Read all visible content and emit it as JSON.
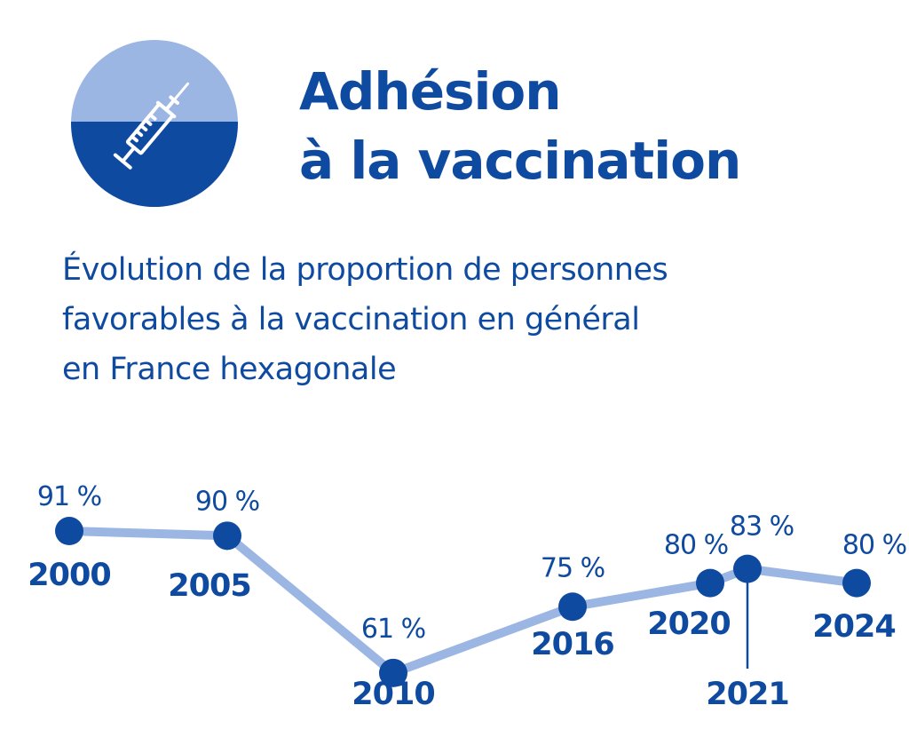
{
  "header": {
    "icon": "syringe-icon",
    "title_line1": "Adhésion",
    "title_line2": "à la vaccination"
  },
  "subtitle": {
    "line1": "Évolution de la proportion de personnes",
    "line2": "favorables à la vaccination en général",
    "line3": "en France hexagonale"
  },
  "colors": {
    "primary": "#0f4aa1",
    "line": "#9bb6e2",
    "badge_light": "#9bb6e2",
    "badge_dark": "#0f4aa1"
  },
  "chart_data": {
    "type": "line",
    "title": "",
    "xlabel": "",
    "ylabel": "",
    "x": [
      2000,
      2005,
      2010,
      2016,
      2020,
      2021,
      2024
    ],
    "x_labels": [
      "2000",
      "2005",
      "2010",
      "2016",
      "2020",
      "2021",
      "2024"
    ],
    "values": [
      91,
      90,
      61,
      75,
      80,
      83,
      80
    ],
    "value_labels": [
      "91 %",
      "90 %",
      "61 %",
      "75 %",
      "80 %",
      "83 %",
      "80 %"
    ],
    "ylim": [
      55,
      95
    ],
    "grid": false,
    "legend": "none"
  }
}
